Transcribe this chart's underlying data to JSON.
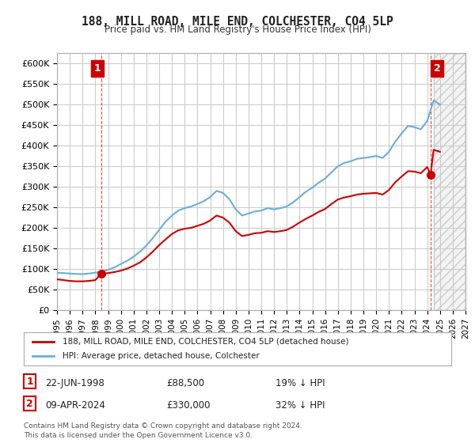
{
  "title": "188, MILL ROAD, MILE END, COLCHESTER, CO4 5LP",
  "subtitle": "Price paid vs. HM Land Registry's House Price Index (HPI)",
  "xlabel": "",
  "ylabel": "",
  "ylim": [
    0,
    625000
  ],
  "yticks": [
    0,
    50000,
    100000,
    150000,
    200000,
    250000,
    300000,
    350000,
    400000,
    450000,
    500000,
    550000,
    600000
  ],
  "ytick_labels": [
    "£0",
    "£50K",
    "£100K",
    "£150K",
    "£200K",
    "£250K",
    "£300K",
    "£350K",
    "£400K",
    "£450K",
    "£500K",
    "£550K",
    "£600K"
  ],
  "hpi_color": "#6baed6",
  "price_color": "#cc0000",
  "marker_color": "#cc0000",
  "annotation_box_color": "#cc0000",
  "grid_color": "#cccccc",
  "background_color": "#ffffff",
  "legend_label_price": "188, MILL ROAD, MILE END, COLCHESTER, CO4 5LP (detached house)",
  "legend_label_hpi": "HPI: Average price, detached house, Colchester",
  "point1_label": "1",
  "point1_date": "22-JUN-1998",
  "point1_price": "£88,500",
  "point1_pct": "19% ↓ HPI",
  "point2_label": "2",
  "point2_date": "09-APR-2024",
  "point2_price": "£330,000",
  "point2_pct": "32% ↓ HPI",
  "footnote": "Contains HM Land Registry data © Crown copyright and database right 2024.\nThis data is licensed under the Open Government Licence v3.0.",
  "sale1_x": 1998.47,
  "sale1_y": 88500,
  "sale2_x": 2024.27,
  "sale2_y": 330000,
  "hpi_x": [
    1995.0,
    1995.5,
    1996.0,
    1996.5,
    1997.0,
    1997.5,
    1998.0,
    1998.5,
    1999.0,
    1999.5,
    2000.0,
    2000.5,
    2001.0,
    2001.5,
    2002.0,
    2002.5,
    2003.0,
    2003.5,
    2004.0,
    2004.5,
    2005.0,
    2005.5,
    2006.0,
    2006.5,
    2007.0,
    2007.5,
    2008.0,
    2008.5,
    2009.0,
    2009.5,
    2010.0,
    2010.5,
    2011.0,
    2011.5,
    2012.0,
    2012.5,
    2013.0,
    2013.5,
    2014.0,
    2014.5,
    2015.0,
    2015.5,
    2016.0,
    2016.5,
    2017.0,
    2017.5,
    2018.0,
    2018.5,
    2019.0,
    2019.5,
    2020.0,
    2020.5,
    2021.0,
    2021.5,
    2022.0,
    2022.5,
    2023.0,
    2023.5,
    2024.0,
    2024.5,
    2025.0
  ],
  "hpi_y": [
    91000,
    90000,
    89000,
    88000,
    87500,
    89000,
    91000,
    94000,
    98000,
    104000,
    112000,
    120000,
    130000,
    142000,
    157000,
    175000,
    195000,
    215000,
    230000,
    242000,
    248000,
    252000,
    258000,
    265000,
    275000,
    290000,
    285000,
    270000,
    245000,
    230000,
    235000,
    240000,
    242000,
    248000,
    245000,
    248000,
    252000,
    262000,
    275000,
    288000,
    298000,
    310000,
    320000,
    335000,
    350000,
    358000,
    362000,
    368000,
    370000,
    372000,
    375000,
    370000,
    385000,
    410000,
    430000,
    448000,
    445000,
    440000,
    460000,
    510000,
    500000
  ],
  "price_x": [
    1995.0,
    1995.5,
    1996.0,
    1996.5,
    1997.0,
    1997.5,
    1998.0,
    1998.47,
    1999.0,
    1999.5,
    2000.0,
    2000.5,
    2001.0,
    2001.5,
    2002.0,
    2002.5,
    2003.0,
    2003.5,
    2004.0,
    2004.5,
    2005.0,
    2005.5,
    2006.0,
    2006.5,
    2007.0,
    2007.5,
    2008.0,
    2008.5,
    2009.0,
    2009.5,
    2010.0,
    2010.5,
    2011.0,
    2011.5,
    2012.0,
    2012.5,
    2013.0,
    2013.5,
    2014.0,
    2014.5,
    2015.0,
    2015.5,
    2016.0,
    2016.5,
    2017.0,
    2017.5,
    2018.0,
    2018.5,
    2019.0,
    2019.5,
    2020.0,
    2020.5,
    2021.0,
    2021.5,
    2022.0,
    2022.5,
    2023.0,
    2023.5,
    2024.0,
    2024.27,
    2024.5,
    2025.0
  ],
  "price_y": [
    75000,
    73000,
    71000,
    70000,
    70000,
    71000,
    73000,
    88500,
    90000,
    92500,
    96000,
    101000,
    108000,
    116000,
    128000,
    142000,
    158000,
    172000,
    185000,
    194000,
    198000,
    200000,
    205000,
    210000,
    218000,
    230000,
    225000,
    213000,
    192000,
    180000,
    183000,
    187000,
    188000,
    192000,
    190000,
    192000,
    195000,
    203000,
    213000,
    222000,
    230000,
    239000,
    246000,
    258000,
    269000,
    274000,
    277000,
    281000,
    283000,
    284000,
    285000,
    281000,
    292000,
    311000,
    325000,
    338000,
    337000,
    333000,
    348000,
    330000,
    390000,
    385000
  ],
  "xmin": 1995.0,
  "xmax": 2027.0,
  "xtick_years": [
    1995,
    1996,
    1997,
    1998,
    1999,
    2000,
    2001,
    2002,
    2003,
    2004,
    2005,
    2006,
    2007,
    2008,
    2009,
    2010,
    2011,
    2012,
    2013,
    2014,
    2015,
    2016,
    2017,
    2018,
    2019,
    2020,
    2021,
    2022,
    2023,
    2024,
    2025,
    2026,
    2027
  ],
  "hatched_region_start": 2024.5,
  "hatched_region_end": 2027.0
}
